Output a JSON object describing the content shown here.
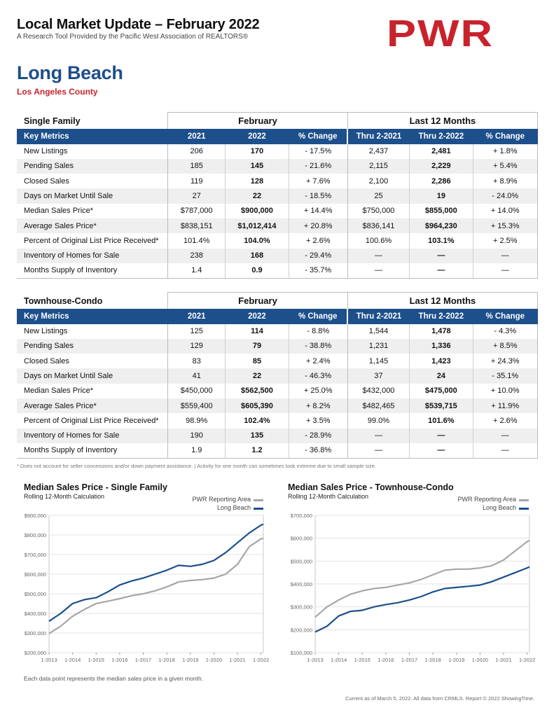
{
  "header": {
    "title": "Local Market Update – February 2022",
    "subtitle": "A Research Tool Provided by the Pacific West Association of REALTORS®",
    "logo": "PWR",
    "city": "Long Beach",
    "county": "Los Angeles County"
  },
  "colors": {
    "brand_blue": "#1d4f8b",
    "brand_red": "#c8232c",
    "series_gray": "#a7a7a7",
    "series_blue": "#1d4f8b"
  },
  "tables": [
    {
      "name": "Single Family",
      "group1": "February",
      "group2": "Last 12 Months",
      "headers": [
        "Key Metrics",
        "2021",
        "2022",
        "% Change",
        "Thru 2-2021",
        "Thru 2-2022",
        "% Change"
      ],
      "rows": [
        [
          "New Listings",
          "206",
          "170",
          "- 17.5%",
          "2,437",
          "2,481",
          "+ 1.8%"
        ],
        [
          "Pending Sales",
          "185",
          "145",
          "- 21.6%",
          "2,115",
          "2,229",
          "+ 5.4%"
        ],
        [
          "Closed Sales",
          "119",
          "128",
          "+ 7.6%",
          "2,100",
          "2,286",
          "+ 8.9%"
        ],
        [
          "Days on Market Until Sale",
          "27",
          "22",
          "- 18.5%",
          "25",
          "19",
          "- 24.0%"
        ],
        [
          "Median Sales Price*",
          "$787,000",
          "$900,000",
          "+ 14.4%",
          "$750,000",
          "$855,000",
          "+ 14.0%"
        ],
        [
          "Average Sales Price*",
          "$838,151",
          "$1,012,414",
          "+ 20.8%",
          "$836,141",
          "$964,230",
          "+ 15.3%"
        ],
        [
          "Percent of Original List Price Received*",
          "101.4%",
          "104.0%",
          "+ 2.6%",
          "100.6%",
          "103.1%",
          "+ 2.5%"
        ],
        [
          "Inventory of Homes for Sale",
          "238",
          "168",
          "- 29.4%",
          "—",
          "—",
          "—"
        ],
        [
          "Months Supply of Inventory",
          "1.4",
          "0.9",
          "- 35.7%",
          "—",
          "—",
          "—"
        ]
      ]
    },
    {
      "name": "Townhouse-Condo",
      "group1": "February",
      "group2": "Last 12 Months",
      "headers": [
        "Key Metrics",
        "2021",
        "2022",
        "% Change",
        "Thru 2-2021",
        "Thru 2-2022",
        "% Change"
      ],
      "rows": [
        [
          "New Listings",
          "125",
          "114",
          "- 8.8%",
          "1,544",
          "1,478",
          "- 4.3%"
        ],
        [
          "Pending Sales",
          "129",
          "79",
          "- 38.8%",
          "1,231",
          "1,336",
          "+ 8.5%"
        ],
        [
          "Closed Sales",
          "83",
          "85",
          "+ 2.4%",
          "1,145",
          "1,423",
          "+ 24.3%"
        ],
        [
          "Days on Market Until Sale",
          "41",
          "22",
          "- 46.3%",
          "37",
          "24",
          "- 35.1%"
        ],
        [
          "Median Sales Price*",
          "$450,000",
          "$562,500",
          "+ 25.0%",
          "$432,000",
          "$475,000",
          "+ 10.0%"
        ],
        [
          "Average Sales Price*",
          "$559,400",
          "$605,390",
          "+ 8.2%",
          "$482,465",
          "$539,715",
          "+ 11.9%"
        ],
        [
          "Percent of Original List Price Received*",
          "98.9%",
          "102.4%",
          "+ 3.5%",
          "99.0%",
          "101.6%",
          "+ 2.6%"
        ],
        [
          "Inventory of Homes for Sale",
          "190",
          "135",
          "- 28.9%",
          "—",
          "—",
          "—"
        ],
        [
          "Months Supply of Inventory",
          "1.9",
          "1.2",
          "- 36.8%",
          "—",
          "—",
          "—"
        ]
      ]
    }
  ],
  "footnote": "* Does not account for seller concessions and/or down payment assistance. | Activity for one month can sometimes look extreme due to small sample size.",
  "bottom_note": "Each data point represents the median sales price in a given month.",
  "copyright": "Current as of March 5, 2022. All data from CRMLS. Report © 2022 ShowingTime.",
  "chart_data": [
    {
      "type": "line",
      "title": "Median Sales Price - Single Family",
      "subtitle": "Rolling 12-Month Calculation",
      "x": [
        "1-2013",
        "1-2014",
        "1-2015",
        "1-2016",
        "1-2017",
        "1-2018",
        "1-2019",
        "1-2020",
        "1-2021",
        "1-2022"
      ],
      "ylim": [
        200000,
        900000
      ],
      "yticks": [
        "$200,000",
        "$300,000",
        "$400,000",
        "$500,000",
        "$600,000",
        "$700,000",
        "$800,000",
        "$900,000"
      ],
      "legend_placement": "top-right",
      "series": [
        {
          "name": "PWR Reporting Area",
          "color": "#a7a7a7",
          "x": [
            2013.0,
            2013.5,
            2014.0,
            2014.5,
            2015.0,
            2015.5,
            2016.0,
            2016.5,
            2017.0,
            2017.5,
            2018.0,
            2018.5,
            2019.0,
            2019.5,
            2020.0,
            2020.5,
            2021.0,
            2021.5,
            2022.0,
            2022.1
          ],
          "values": [
            297000,
            335000,
            385000,
            420000,
            450000,
            462000,
            475000,
            490000,
            500000,
            515000,
            535000,
            560000,
            568000,
            572000,
            580000,
            600000,
            650000,
            740000,
            780000,
            782000
          ]
        },
        {
          "name": "Long Beach",
          "color": "#1d4f8b",
          "x": [
            2013.0,
            2013.5,
            2014.0,
            2014.5,
            2015.0,
            2015.5,
            2016.0,
            2016.5,
            2017.0,
            2017.5,
            2018.0,
            2018.5,
            2019.0,
            2019.5,
            2020.0,
            2020.5,
            2021.0,
            2021.5,
            2022.0,
            2022.1
          ],
          "values": [
            360000,
            400000,
            450000,
            470000,
            480000,
            510000,
            545000,
            565000,
            580000,
            600000,
            620000,
            645000,
            640000,
            650000,
            670000,
            710000,
            760000,
            810000,
            850000,
            855000
          ]
        }
      ]
    },
    {
      "type": "line",
      "title": "Median Sales Price - Townhouse-Condo",
      "subtitle": "Rolling 12-Month Calculation",
      "x": [
        "1-2013",
        "1-2014",
        "1-2015",
        "1-2016",
        "1-2017",
        "1-2018",
        "1-2019",
        "1-2020",
        "1-2021",
        "1-2022"
      ],
      "ylim": [
        100000,
        700000
      ],
      "yticks": [
        "$100,000",
        "$200,000",
        "$300,000",
        "$400,000",
        "$500,000",
        "$600,000",
        "$700,000"
      ],
      "legend_placement": "top-right",
      "series": [
        {
          "name": "PWR Reporting Area",
          "color": "#a7a7a7",
          "x": [
            2013.0,
            2013.5,
            2014.0,
            2014.5,
            2015.0,
            2015.5,
            2016.0,
            2016.5,
            2017.0,
            2017.5,
            2018.0,
            2018.5,
            2019.0,
            2019.5,
            2020.0,
            2020.5,
            2021.0,
            2021.5,
            2022.0,
            2022.1
          ],
          "values": [
            255000,
            300000,
            330000,
            355000,
            370000,
            380000,
            385000,
            395000,
            405000,
            420000,
            440000,
            460000,
            465000,
            465000,
            470000,
            480000,
            505000,
            545000,
            585000,
            590000
          ]
        },
        {
          "name": "Long Beach",
          "color": "#1d4f8b",
          "x": [
            2013.0,
            2013.5,
            2014.0,
            2014.5,
            2015.0,
            2015.5,
            2016.0,
            2016.5,
            2017.0,
            2017.5,
            2018.0,
            2018.5,
            2019.0,
            2019.5,
            2020.0,
            2020.5,
            2021.0,
            2021.5,
            2022.0,
            2022.1
          ],
          "values": [
            190000,
            215000,
            260000,
            280000,
            285000,
            300000,
            310000,
            318000,
            330000,
            345000,
            365000,
            380000,
            385000,
            390000,
            395000,
            410000,
            430000,
            450000,
            470000,
            475000
          ]
        }
      ]
    }
  ]
}
